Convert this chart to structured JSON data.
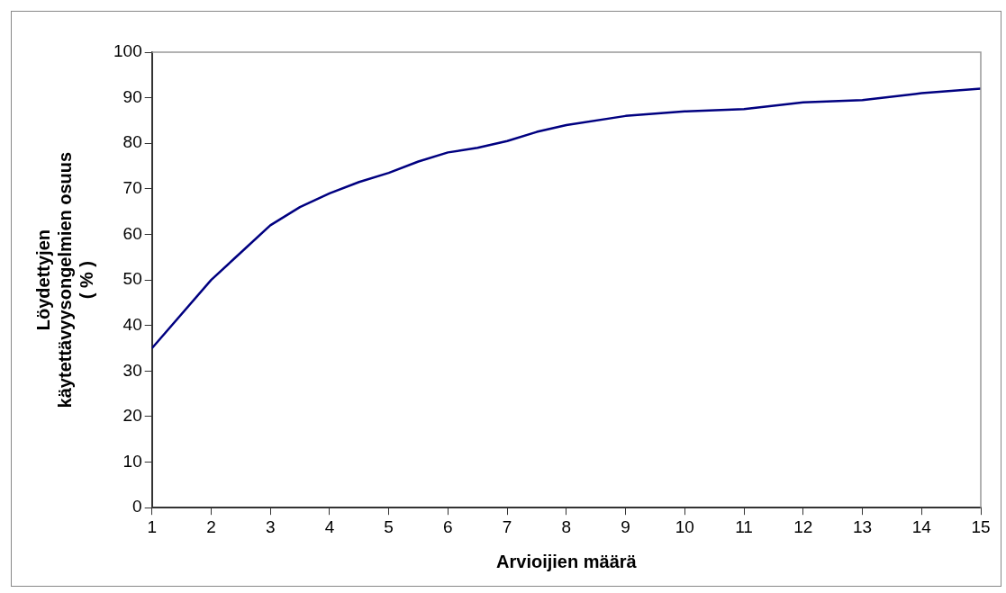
{
  "chart_data": {
    "type": "line",
    "xlabel": "Arvioijien määrä",
    "ylabel": "Löydettyjen\nkäytettävyysongelmien osuus\n( % )",
    "x": [
      1,
      2,
      2.5,
      3,
      3.5,
      4,
      4.5,
      5,
      5.5,
      6,
      6.5,
      7,
      7.5,
      8,
      9,
      10,
      11,
      12,
      13,
      14,
      15
    ],
    "series": [
      {
        "color": "#000080",
        "values": [
          35,
          50,
          56,
          62,
          66,
          69,
          71.5,
          73.5,
          76,
          78,
          79,
          80.5,
          82.5,
          84,
          86,
          87,
          87.5,
          89,
          89.5,
          91,
          92
        ]
      }
    ],
    "xlim": [
      1,
      15
    ],
    "xticks": [
      1,
      2,
      3,
      4,
      5,
      6,
      7,
      8,
      9,
      10,
      11,
      12,
      13,
      14,
      15
    ],
    "ylim": [
      0,
      100
    ],
    "yticks": [
      0,
      10,
      20,
      30,
      40,
      50,
      60,
      70,
      80,
      90,
      100
    ],
    "grid": false,
    "legend": false,
    "marker": "none",
    "line_style": "solid"
  }
}
